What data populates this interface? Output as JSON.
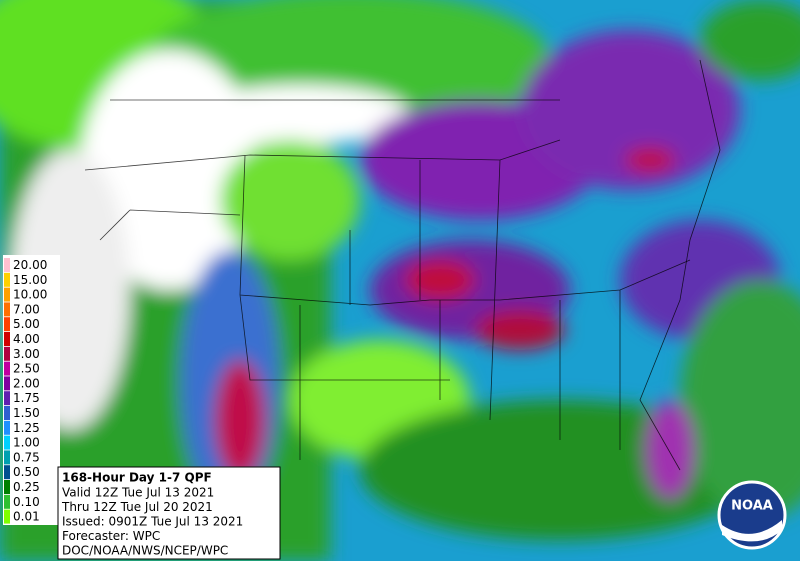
{
  "legend": {
    "labels": [
      "20.00",
      "15.00",
      "10.00",
      "7.00",
      "5.00",
      "4.00",
      "3.00",
      "2.50",
      "2.00",
      "1.75",
      "1.50",
      "1.25",
      "1.00",
      "0.75",
      "0.50",
      "0.25",
      "0.10",
      "0.01"
    ]
  },
  "info": {
    "title": "168-Hour Day 1-7 QPF",
    "lines": [
      "Valid 12Z Tue Jul 13 2021",
      "Thru 12Z Tue Jul 20 2021",
      "Issued: 0901Z Tue Jul 13 2021",
      "Forecaster: WPC",
      "DOC/NOAA/NWS/NCEP/WPC"
    ]
  },
  "logo": "NOAA"
}
